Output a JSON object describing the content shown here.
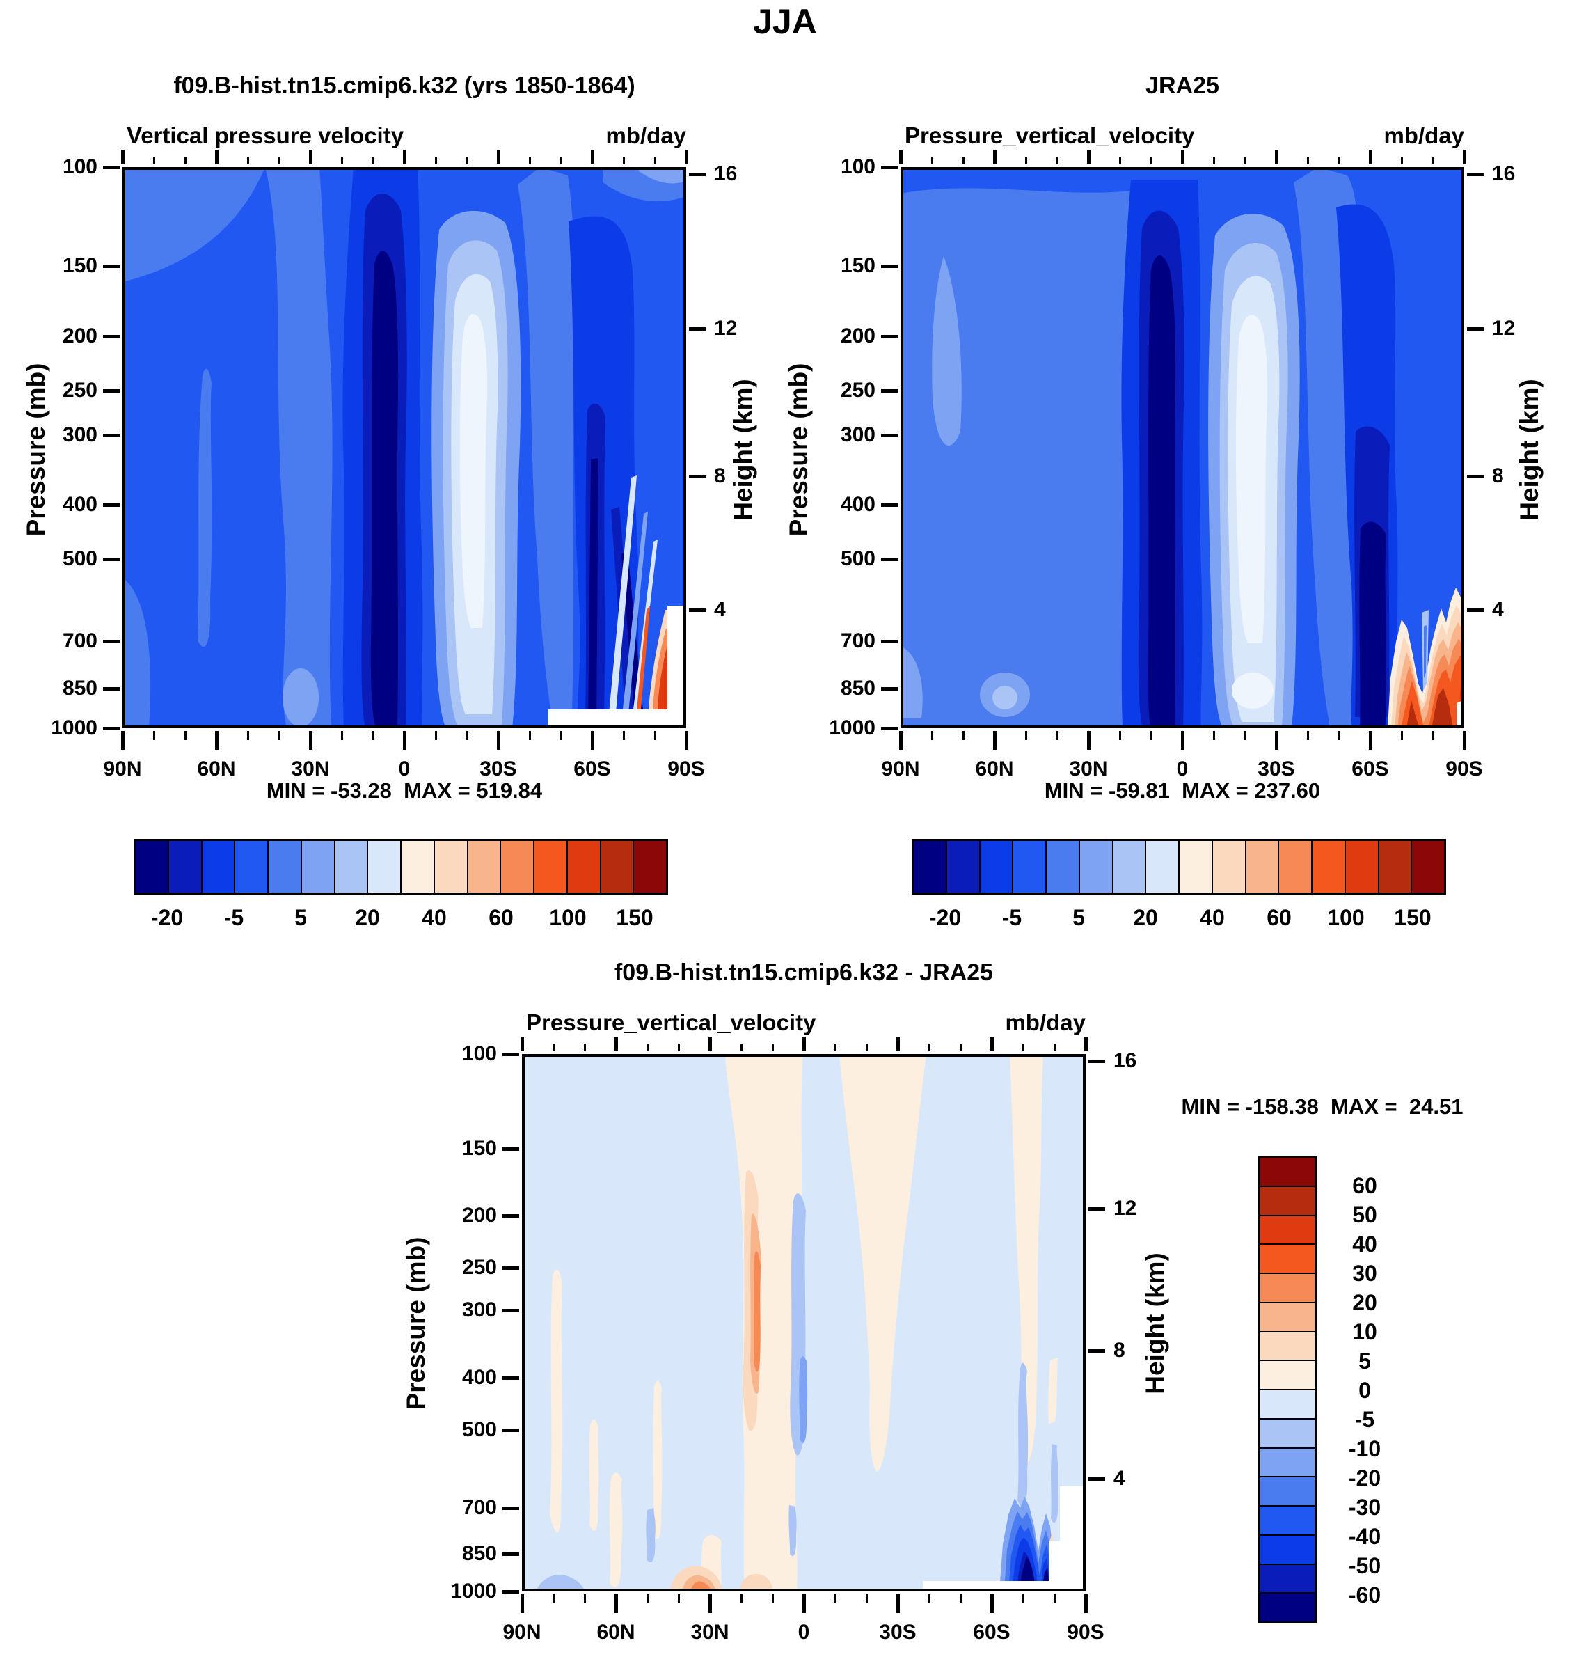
{
  "title": "JJA",
  "palette": {
    "comment_colors": "16-class blue-to-red filled contour palette",
    "colors": [
      "#000082",
      "#0a1cba",
      "#0b3ce8",
      "#2158f2",
      "#4a7cf0",
      "#7fa3f3",
      "#a9c4f5",
      "#d8e7fa",
      "#fcefdf",
      "#fbd9be",
      "#f8b58c",
      "#f58a57",
      "#f4581f",
      "#e03a10",
      "#b52d0e",
      "#8b0806"
    ]
  },
  "panels": {
    "model": {
      "title": "f09.B-hist.tn15.cmip6.k32 (yrs 1850-1864)",
      "subtitle_left": "Vertical pressure velocity",
      "subtitle_right": "mb/day",
      "stat_line": "MIN = -53.28  MAX = 519.84",
      "y_label": "Pressure (mb)",
      "y2_label": "Height (km)",
      "x_ticks": [
        "90N",
        "60N",
        "30N",
        "0",
        "30S",
        "60S",
        "90S"
      ],
      "y_ticks": [
        100,
        150,
        200,
        250,
        300,
        400,
        500,
        700,
        850,
        1000
      ],
      "y2_ticks": [
        {
          "km": "16",
          "p": 103
        },
        {
          "km": "12",
          "p": 194
        },
        {
          "km": "8",
          "p": 356
        },
        {
          "km": "4",
          "p": 616
        }
      ]
    },
    "reference": {
      "title": "JRA25",
      "subtitle_left": "Pressure_vertical_velocity",
      "subtitle_right": "mb/day",
      "stat_line": "MIN = -59.81  MAX = 237.60",
      "y_label": "Pressure (mb)",
      "y2_label": "Height (km)",
      "x_ticks": [
        "90N",
        "60N",
        "30N",
        "0",
        "30S",
        "60S",
        "90S"
      ],
      "y_ticks": [
        100,
        150,
        200,
        250,
        300,
        400,
        500,
        700,
        850,
        1000
      ],
      "y2_ticks": [
        {
          "km": "16",
          "p": 103
        },
        {
          "km": "12",
          "p": 194
        },
        {
          "km": "8",
          "p": 356
        },
        {
          "km": "4",
          "p": 616
        }
      ]
    },
    "difference": {
      "title": "f09.B-hist.tn15.cmip6.k32 - JRA25",
      "subtitle_left": "Pressure_vertical_velocity",
      "subtitle_right": "mb/day",
      "stat_line": "MIN = -158.38  MAX =  24.51",
      "y_label": "Pressure (mb)",
      "y2_label": "Height (km)",
      "x_ticks": [
        "90N",
        "60N",
        "30N",
        "0",
        "30S",
        "60S",
        "90S"
      ],
      "y_ticks": [
        100,
        150,
        200,
        250,
        300,
        400,
        500,
        700,
        850,
        1000
      ],
      "y2_ticks": [
        {
          "km": "16",
          "p": 103
        },
        {
          "km": "12",
          "p": 194
        },
        {
          "km": "8",
          "p": 356
        },
        {
          "km": "4",
          "p": 616
        }
      ]
    }
  },
  "shared_colorbar": {
    "labels": [
      "-20",
      "-5",
      "5",
      "20",
      "40",
      "60",
      "100",
      "150"
    ],
    "label_boundaries": [
      1,
      3,
      5,
      7,
      9,
      11,
      13,
      15
    ]
  },
  "diff_colorbar": {
    "labels_top_to_bottom": [
      "60",
      "50",
      "40",
      "30",
      "20",
      "10",
      "5",
      "0",
      "-5",
      "-10",
      "-20",
      "-30",
      "-40",
      "-50",
      "-60"
    ]
  },
  "chart_data": [
    {
      "type": "filled_contour",
      "id": "model",
      "title": "f09.B-hist.tn15.cmip6.k32 (yrs 1850-1864)",
      "variable": "Vertical pressure velocity",
      "units": "mb/day",
      "season": "JJA",
      "x_axis": {
        "ticks": [
          "90N",
          "60N",
          "30N",
          "0",
          "30S",
          "60S",
          "90S"
        ],
        "minor_tick_deg": 10,
        "range": [
          90,
          -90
        ]
      },
      "y_axis": {
        "label": "Pressure (mb)",
        "ticks": [
          100,
          150,
          200,
          250,
          300,
          400,
          500,
          700,
          850,
          1000
        ],
        "scale": "log",
        "inverted": true
      },
      "y2_axis": {
        "label": "Height (km)",
        "ticks": [
          16,
          12,
          8,
          4
        ]
      },
      "stats": {
        "min": -53.28,
        "max": 519.84
      },
      "contour_levels": [
        -20,
        -10,
        -5,
        0,
        5,
        10,
        20,
        30,
        40,
        50,
        60,
        80,
        100,
        125,
        150
      ],
      "features": [
        "strong narrow ascent column (values < -20 mb/day) near 5-10N from ~150 mb to surface",
        "broad subsidence cell (+10 to +30 mb/day, near-white) centered ~15-25S between 150 and 1000 mb",
        "secondary descent band with dark-blue ascent streaks near 55-70S below 300 mb",
        "orange/red subsidence wedge >60 mb/day at ~85S near 700-950 mb",
        "white terrain cut-out over Antarctica below ~930 mb poleward of ~45S rising to ~4 km at 90S"
      ]
    },
    {
      "type": "filled_contour",
      "id": "reference",
      "title": "JRA25",
      "variable": "Pressure_vertical_velocity",
      "units": "mb/day",
      "season": "JJA",
      "x_axis": {
        "ticks": [
          "90N",
          "60N",
          "30N",
          "0",
          "30S",
          "60S",
          "90S"
        ],
        "minor_tick_deg": 10,
        "range": [
          90,
          -90
        ]
      },
      "y_axis": {
        "label": "Pressure (mb)",
        "ticks": [
          100,
          150,
          200,
          250,
          300,
          400,
          500,
          700,
          850,
          1000
        ],
        "scale": "log",
        "inverted": true
      },
      "y2_axis": {
        "label": "Height (km)",
        "ticks": [
          16,
          12,
          8,
          4
        ]
      },
      "stats": {
        "min": -59.81,
        "max": 237.6
      },
      "contour_levels": [
        -20,
        -10,
        -5,
        0,
        5,
        10,
        20,
        30,
        40,
        50,
        60,
        80,
        100,
        125,
        150
      ],
      "features": [
        "narrow ITCZ ascent column (< -20 mb/day) near 5-10N reaching the surface",
        "broad near-white subsidence cell ~10-25S, 150-850 mb",
        "generally lighter (weaker ascent) field over the NH mid/high latitudes than the model",
        "large double-peaked orange/red katabatic subsidence region (60->150 mb/day) 65-90S below ~650 mb",
        "small white terrain notch at the 90S surface corner"
      ]
    },
    {
      "type": "filled_contour",
      "id": "difference",
      "title": "f09.B-hist.tn15.cmip6.k32 - JRA25",
      "variable": "Pressure_vertical_velocity",
      "units": "mb/day",
      "season": "JJA",
      "x_axis": {
        "ticks": [
          "90N",
          "60N",
          "30N",
          "0",
          "30S",
          "60S",
          "90S"
        ],
        "minor_tick_deg": 10,
        "range": [
          90,
          -90
        ]
      },
      "y_axis": {
        "label": "Pressure (mb)",
        "ticks": [
          100,
          150,
          200,
          250,
          300,
          400,
          500,
          700,
          850,
          1000
        ],
        "scale": "log",
        "inverted": true
      },
      "y2_axis": {
        "label": "Height (km)",
        "ticks": [
          16,
          12,
          8,
          4
        ]
      },
      "stats": {
        "min": -158.38,
        "max": 24.51
      },
      "contour_levels": [
        -60,
        -50,
        -40,
        -30,
        -20,
        -10,
        -5,
        0,
        5,
        10,
        20,
        30,
        40,
        50,
        60
      ],
      "features": [
        "mostly weak negative differences (-5 to 0, pale blue) everywhere",
        "positive (0-20) peach/salmon columns near 25N-0, 0-30S, ~55-75N streaks and 66-76S",
        "salmon core 10-20 near 10-20N at 200-450 mb and near 35N at the surface",
        "weak negative streak along the equator mid-troposphere",
        "strong negative blob (< -60) at 68-85S, 700-950 mb next to the Antarctic terrain cut-out"
      ]
    }
  ]
}
